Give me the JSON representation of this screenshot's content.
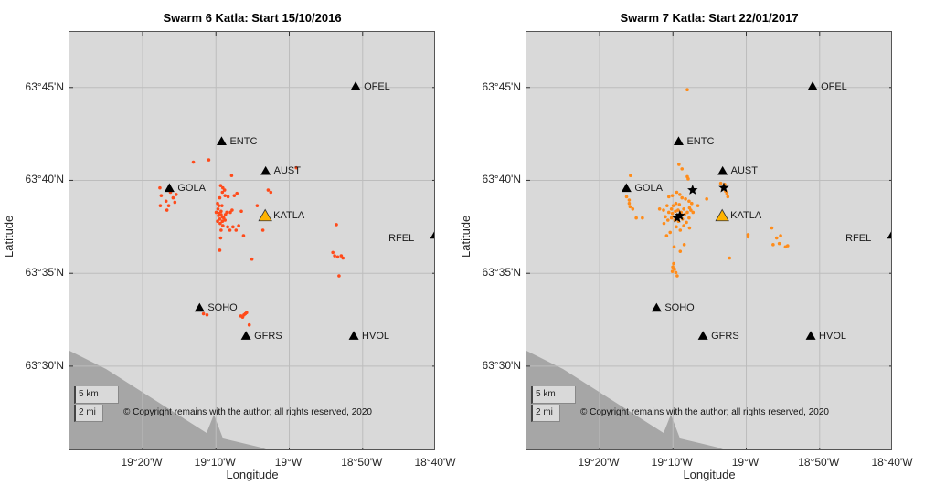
{
  "figure": {
    "axis_labels": {
      "x": "Longitude",
      "y": "Latitude"
    },
    "copyright": "© Copyright remains with the author; all rights reserved, 2020",
    "scale_bar": {
      "km": "5 km",
      "mi": "2 mi"
    },
    "colors": {
      "map_bg": "#d9d9d9",
      "land_shade": "#a6a6a6",
      "swarm6_event": "#ff4a1a",
      "swarm7_event": "#ff8c1a",
      "station": "#000000",
      "katla": "#ffb300",
      "grid": "#bdbdbd"
    }
  },
  "chart_data": [
    {
      "type": "scatter",
      "title": "Swarm 6 Katla: Start 15/10/2016",
      "xlabel": "Longitude",
      "ylabel": "Latitude",
      "xlim": [
        -19.4995,
        -18.6667
      ],
      "ylim": [
        63.4237,
        63.7998
      ],
      "xticks": [
        -19.3333,
        -19.1667,
        -19.0,
        -18.8333,
        -18.6667
      ],
      "xtick_labels": [
        "19°20'W",
        "19°10'W",
        "19°W",
        "18°50'W",
        "18°40'W"
      ],
      "yticks": [
        63.75,
        63.6667,
        63.5833,
        63.5
      ],
      "ytick_labels": [
        "63°45'N",
        "63°40'N",
        "63°35'N",
        "63°30'N"
      ],
      "grid": true,
      "stations": [
        {
          "name": "OFEL",
          "lon": -18.8493,
          "lat": 63.7509
        },
        {
          "name": "ENTC",
          "lon": -19.1538,
          "lat": 63.7016
        },
        {
          "name": "AUST",
          "lon": -19.0537,
          "lat": 63.6749
        },
        {
          "name": "GOLA",
          "lon": -19.2724,
          "lat": 63.6597
        },
        {
          "name": "KATLA",
          "lon": -19.0547,
          "lat": 63.6347,
          "highlight": true
        },
        {
          "name": "RFEL",
          "lon": -18.6686,
          "lat": 63.6178,
          "label_side": "left"
        },
        {
          "name": "SOHO",
          "lon": -19.2039,
          "lat": 63.5522
        },
        {
          "name": "GFRS",
          "lon": -19.0984,
          "lat": 63.5271
        },
        {
          "name": "HVOL",
          "lon": -18.8535,
          "lat": 63.5271
        }
      ],
      "events": [
        [
          -19.218,
          63.683
        ],
        [
          -19.183,
          63.685
        ],
        [
          -19.131,
          63.671
        ],
        [
          -18.984,
          63.678
        ],
        [
          -19.294,
          63.66
        ],
        [
          -19.291,
          63.653
        ],
        [
          -19.293,
          63.644
        ],
        [
          -19.274,
          63.644
        ],
        [
          -19.264,
          63.651
        ],
        [
          -19.26,
          63.647
        ],
        [
          -19.257,
          63.654
        ],
        [
          -19.27,
          63.656
        ],
        [
          -19.28,
          63.648
        ],
        [
          -19.278,
          63.64
        ],
        [
          -19.156,
          63.662
        ],
        [
          -19.151,
          63.66
        ],
        [
          -19.152,
          63.656
        ],
        [
          -19.146,
          63.653
        ],
        [
          -19.158,
          63.651
        ],
        [
          -19.147,
          63.658
        ],
        [
          -19.139,
          63.652
        ],
        [
          -19.125,
          63.653
        ],
        [
          -19.119,
          63.655
        ],
        [
          -19.048,
          63.658
        ],
        [
          -19.042,
          63.656
        ],
        [
          -19.163,
          63.646
        ],
        [
          -19.16,
          63.644
        ],
        [
          -19.162,
          63.641
        ],
        [
          -19.153,
          63.644
        ],
        [
          -19.166,
          63.638
        ],
        [
          -19.16,
          63.637
        ],
        [
          -19.155,
          63.636
        ],
        [
          -19.152,
          63.634
        ],
        [
          -19.158,
          63.632
        ],
        [
          -19.163,
          63.63
        ],
        [
          -19.157,
          63.628
        ],
        [
          -19.152,
          63.63
        ],
        [
          -19.149,
          63.633
        ],
        [
          -19.161,
          63.635
        ],
        [
          -19.155,
          63.639
        ],
        [
          -19.145,
          63.636
        ],
        [
          -19.142,
          63.638
        ],
        [
          -19.134,
          63.638
        ],
        [
          -19.13,
          63.64
        ],
        [
          -19.146,
          63.631
        ],
        [
          -19.151,
          63.626
        ],
        [
          -19.155,
          63.622
        ],
        [
          -19.14,
          63.625
        ],
        [
          -19.135,
          63.622
        ],
        [
          -19.128,
          63.625
        ],
        [
          -19.115,
          63.626
        ],
        [
          -19.121,
          63.622
        ],
        [
          -19.109,
          63.639
        ],
        [
          -19.073,
          63.644
        ],
        [
          -19.104,
          63.617
        ],
        [
          -19.06,
          63.622
        ],
        [
          -19.156,
          63.615
        ],
        [
          -19.158,
          63.604
        ],
        [
          -19.085,
          63.596
        ],
        [
          -18.893,
          63.627
        ],
        [
          -18.901,
          63.602
        ],
        [
          -18.897,
          63.599
        ],
        [
          -18.89,
          63.598
        ],
        [
          -18.882,
          63.599
        ],
        [
          -18.878,
          63.597
        ],
        [
          -18.887,
          63.581
        ],
        [
          -19.195,
          63.547
        ],
        [
          -19.187,
          63.546
        ],
        [
          -19.11,
          63.545
        ],
        [
          -19.106,
          63.544
        ],
        [
          -19.103,
          63.546
        ],
        [
          -19.1,
          63.547
        ],
        [
          -19.097,
          63.548
        ],
        [
          -19.091,
          63.537
        ]
      ]
    },
    {
      "type": "scatter",
      "title": "Swarm 7 Katla: Start 22/01/2017",
      "xlabel": "Longitude",
      "ylabel": "Latitude",
      "xlim": [
        -19.4995,
        -18.6667
      ],
      "ylim": [
        63.4237,
        63.7998
      ],
      "xticks": [
        -19.3333,
        -19.1667,
        -19.0,
        -18.8333,
        -18.6667
      ],
      "xtick_labels": [
        "19°20'W",
        "19°10'W",
        "19°W",
        "18°50'W",
        "18°40'W"
      ],
      "yticks": [
        63.75,
        63.6667,
        63.5833,
        63.5
      ],
      "ytick_labels": [
        "63°45'N",
        "63°40'N",
        "63°35'N",
        "63°30'N"
      ],
      "grid": true,
      "stations": [
        {
          "name": "OFEL",
          "lon": -18.8493,
          "lat": 63.7509
        },
        {
          "name": "ENTC",
          "lon": -19.1538,
          "lat": 63.7016
        },
        {
          "name": "AUST",
          "lon": -19.0537,
          "lat": 63.6749
        },
        {
          "name": "GOLA",
          "lon": -19.2724,
          "lat": 63.6597
        },
        {
          "name": "KATLA",
          "lon": -19.0547,
          "lat": 63.6347,
          "highlight": true
        },
        {
          "name": "RFEL",
          "lon": -18.6686,
          "lat": 63.6178,
          "label_side": "left"
        },
        {
          "name": "SOHO",
          "lon": -19.2039,
          "lat": 63.5522
        },
        {
          "name": "GFRS",
          "lon": -19.0984,
          "lat": 63.5271
        },
        {
          "name": "HVOL",
          "lon": -18.8535,
          "lat": 63.5271
        }
      ],
      "events": [
        [
          -19.134,
          63.748
        ],
        [
          -19.153,
          63.681
        ],
        [
          -19.146,
          63.677
        ],
        [
          -19.134,
          63.67
        ],
        [
          -19.132,
          63.668
        ],
        [
          -19.263,
          63.671
        ],
        [
          -19.272,
          63.652
        ],
        [
          -19.266,
          63.649
        ],
        [
          -19.266,
          63.646
        ],
        [
          -19.264,
          63.643
        ],
        [
          -19.258,
          63.641
        ],
        [
          -19.25,
          63.633
        ],
        [
          -19.236,
          63.633
        ],
        [
          -19.197,
          63.641
        ],
        [
          -19.188,
          63.64
        ],
        [
          -19.18,
          63.644
        ],
        [
          -19.176,
          63.652
        ],
        [
          -19.168,
          63.653
        ],
        [
          -19.158,
          63.656
        ],
        [
          -19.151,
          63.654
        ],
        [
          -19.146,
          63.651
        ],
        [
          -19.138,
          63.65
        ],
        [
          -19.13,
          63.648
        ],
        [
          -19.124,
          63.646
        ],
        [
          -19.129,
          63.642
        ],
        [
          -19.142,
          63.641
        ],
        [
          -19.152,
          63.645
        ],
        [
          -19.16,
          63.646
        ],
        [
          -19.166,
          63.644
        ],
        [
          -19.17,
          63.641
        ],
        [
          -19.176,
          63.638
        ],
        [
          -19.168,
          63.637
        ],
        [
          -19.161,
          63.639
        ],
        [
          -19.155,
          63.64
        ],
        [
          -19.148,
          63.638
        ],
        [
          -19.14,
          63.636
        ],
        [
          -19.134,
          63.638
        ],
        [
          -19.126,
          63.64
        ],
        [
          -19.121,
          63.638
        ],
        [
          -19.13,
          63.633
        ],
        [
          -19.145,
          63.632
        ],
        [
          -19.154,
          63.63
        ],
        [
          -19.162,
          63.631
        ],
        [
          -19.17,
          63.633
        ],
        [
          -19.178,
          63.631
        ],
        [
          -19.184,
          63.634
        ],
        [
          -19.187,
          63.628
        ],
        [
          -19.159,
          63.625
        ],
        [
          -19.15,
          63.622
        ],
        [
          -19.142,
          63.626
        ],
        [
          -19.136,
          63.629
        ],
        [
          -19.129,
          63.624
        ],
        [
          -19.173,
          63.62
        ],
        [
          -19.181,
          63.617
        ],
        [
          -19.164,
          63.607
        ],
        [
          -19.15,
          63.603
        ],
        [
          -19.141,
          63.609
        ],
        [
          -19.165,
          63.592
        ],
        [
          -19.167,
          63.589
        ],
        [
          -19.163,
          63.587
        ],
        [
          -19.168,
          63.585
        ],
        [
          -19.16,
          63.584
        ],
        [
          -19.157,
          63.581
        ],
        [
          -19.11,
          63.644
        ],
        [
          -19.09,
          63.65
        ],
        [
          -19.058,
          63.664
        ],
        [
          -19.049,
          63.663
        ],
        [
          -19.047,
          63.657
        ],
        [
          -19.044,
          63.655
        ],
        [
          -19.042,
          63.652
        ],
        [
          -18.996,
          63.618
        ],
        [
          -18.996,
          63.616
        ],
        [
          -18.942,
          63.624
        ],
        [
          -18.931,
          63.615
        ],
        [
          -18.925,
          63.61
        ],
        [
          -18.939,
          63.609
        ],
        [
          -18.911,
          63.607
        ],
        [
          -19.038,
          63.597
        ],
        [
          -18.922,
          63.617
        ],
        [
          -18.906,
          63.608
        ]
      ],
      "mainshocks": [
        [
          -19.157,
          63.633
        ],
        [
          -19.151,
          63.635
        ],
        [
          -19.122,
          63.658
        ],
        [
          -19.051,
          63.66
        ]
      ]
    }
  ]
}
